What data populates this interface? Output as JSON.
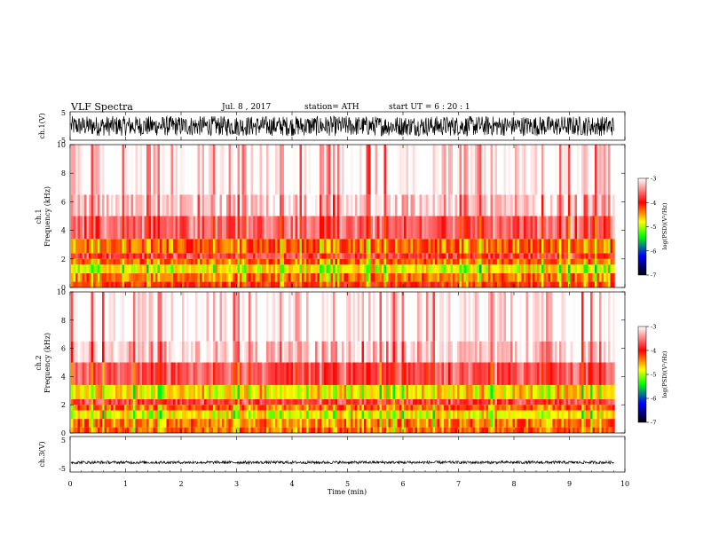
{
  "header": {
    "title": "VLF  Spectra",
    "date": "Jul.  8  , 2017",
    "station": "station= ATH",
    "start": "start  UT  =   6  : 20 : 1"
  },
  "chart_data": [
    {
      "type": "line",
      "panel": "ch1-waveform",
      "ylabel": "ch.1(V)",
      "ylim": [
        -5,
        5
      ],
      "ytick_labels": [
        "5",
        "-5"
      ],
      "signal": {
        "min": -3.5,
        "max": 3.5,
        "description_level": "dense"
      }
    },
    {
      "type": "heatmap",
      "panel": "ch1-spectrogram",
      "ylabel": "ch.1\nFrequency  (kHz)",
      "ylabel_line1": "ch.1",
      "ylabel_line2": "Frequency  (kHz)",
      "ylim": [
        0,
        10
      ],
      "ytick_labels": [
        "0",
        "2",
        "4",
        "6",
        "8",
        "10"
      ],
      "bands": [
        {
          "f0": 0.0,
          "f1": 0.4,
          "level": -4.3
        },
        {
          "f0": 0.4,
          "f1": 1.0,
          "level": -4.6
        },
        {
          "f0": 1.0,
          "f1": 1.6,
          "level": -5.0
        },
        {
          "f0": 1.6,
          "f1": 2.0,
          "level": -4.5
        },
        {
          "f0": 2.0,
          "f1": 2.4,
          "level": -4.0
        },
        {
          "f0": 2.4,
          "f1": 3.4,
          "level": -4.5
        },
        {
          "f0": 3.4,
          "f1": 5.0,
          "level": -3.8
        },
        {
          "f0": 5.0,
          "f1": 6.5,
          "level": -3.4
        },
        {
          "f0": 6.5,
          "f1": 10.0,
          "level": -3.2
        }
      ]
    },
    {
      "type": "heatmap",
      "panel": "ch2-spectrogram",
      "ylabel_line1": "ch.2",
      "ylabel_line2": "Frequency  (kHz)",
      "ylim": [
        0,
        10
      ],
      "ytick_labels": [
        "0",
        "2",
        "4",
        "6",
        "8",
        "10"
      ],
      "bands": [
        {
          "f0": 0.0,
          "f1": 0.4,
          "level": -4.5
        },
        {
          "f0": 0.4,
          "f1": 1.0,
          "level": -4.6
        },
        {
          "f0": 1.0,
          "f1": 1.6,
          "level": -5.0
        },
        {
          "f0": 1.6,
          "f1": 2.0,
          "level": -4.5
        },
        {
          "f0": 2.0,
          "f1": 2.4,
          "level": -4.0
        },
        {
          "f0": 2.4,
          "f1": 3.4,
          "level": -4.9
        },
        {
          "f0": 3.4,
          "f1": 5.0,
          "level": -3.9
        },
        {
          "f0": 5.0,
          "f1": 6.5,
          "level": -3.4
        },
        {
          "f0": 6.5,
          "f1": 10.0,
          "level": -3.2
        }
      ]
    },
    {
      "type": "line",
      "panel": "ch3-waveform",
      "ylabel": "ch.3(V)",
      "ylim": [
        -5,
        5
      ],
      "ytick_labels": [
        "5",
        "-5"
      ],
      "signal": {
        "min": -0.4,
        "max": 0.4,
        "offset": -2.3
      }
    }
  ],
  "xaxis": {
    "xlabel": "Time  (min)",
    "xlim": [
      0,
      10
    ],
    "data_end": 9.8,
    "tick_labels": [
      "0",
      "1",
      "2",
      "3",
      "4",
      "5",
      "6",
      "7",
      "8",
      "9",
      "10"
    ]
  },
  "colorbar": {
    "label": "log(PSD)(V²/Hz)",
    "range": [
      -7,
      -3
    ],
    "tick_labels": [
      "-3",
      "-4",
      "-5",
      "-6",
      "-7"
    ],
    "stops": [
      "#ffffff",
      "#ff0000",
      "#ffff00",
      "#00ff00",
      "#0000ff",
      "#000000"
    ]
  }
}
